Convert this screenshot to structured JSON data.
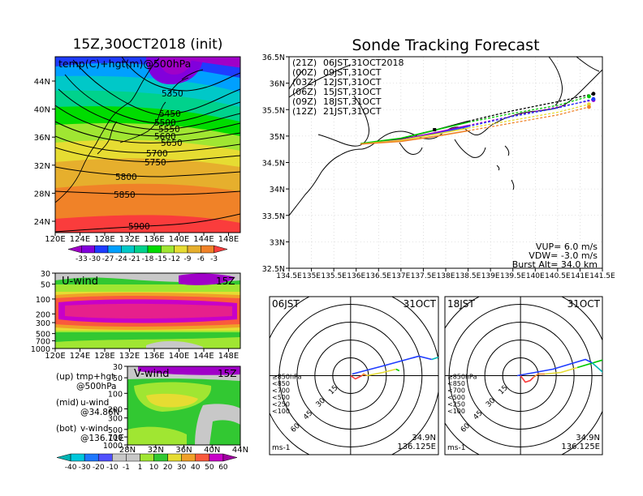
{
  "left_title": "15Z,30OCT2018 (init)",
  "right_title": "Sonde Tracking Forecast",
  "upper_map": {
    "label": "temp(C)+hgt(m)@500hPa",
    "lon_ticks": [
      "120E",
      "124E",
      "128E",
      "132E",
      "136E",
      "140E",
      "144E",
      "148E"
    ],
    "lat_ticks": [
      "44N",
      "40N",
      "36N",
      "32N",
      "28N",
      "24N"
    ],
    "contours": [
      "5350",
      "5450",
      "5500",
      "5550",
      "5600",
      "5650",
      "5700",
      "5750",
      "5800",
      "5850",
      "5900"
    ],
    "colorbar_labels": [
      "-33",
      "-30",
      "-27",
      "-24",
      "-21",
      "-18",
      "-15",
      "-12",
      "-9",
      "-6",
      "-3"
    ],
    "colorbar_colors": [
      "#a000c8",
      "#8200dc",
      "#1e3cff",
      "#00a0ff",
      "#00c8c8",
      "#00d28c",
      "#00dc00",
      "#a0e632",
      "#e6dc32",
      "#e6af2d",
      "#f08228",
      "#fa3c3c"
    ]
  },
  "u_wind": {
    "label": "U-wind",
    "time": "15Z",
    "p_ticks": [
      "30",
      "50",
      "100",
      "200",
      "300",
      "500",
      "700",
      "1000"
    ],
    "lon_ticks": [
      "120E",
      "124E",
      "128E",
      "132E",
      "136E",
      "140E",
      "144E",
      "148E"
    ]
  },
  "v_wind": {
    "label": "V-wind",
    "time": "15Z",
    "p_ticks": [
      "30",
      "50",
      "100",
      "200",
      "300",
      "500",
      "700",
      "1000"
    ],
    "lat_ticks": [
      "28N",
      "32N",
      "36N",
      "40N",
      "44N"
    ]
  },
  "legend_notes": [
    {
      "k": "(up)",
      "line1": "tmp+hgt",
      "line2": "@500hPa"
    },
    {
      "k": "(mid)",
      "line1": "u-wind",
      "line2": "@34.86N"
    },
    {
      "k": "(bot)",
      "line1": "v-wind",
      "line2": "@136.11E"
    }
  ],
  "wind_colorbar_labels": [
    "-40",
    "-30",
    "-20",
    "-10",
    "-1",
    "1",
    "10",
    "20",
    "30",
    "40",
    "50",
    "60"
  ],
  "wind_colorbar_colors": [
    "#00b4b4",
    "#00c8dc",
    "#1e78ff",
    "#5050ff",
    "#c8c8c8",
    "#c8c8c8",
    "#a0e632",
    "#32c832",
    "#e6dc32",
    "#f0a028",
    "#fa5a3c",
    "#c800c8",
    "#a000a0"
  ],
  "track_map": {
    "lat_ticks": [
      "36.5N",
      "36N",
      "35.5N",
      "35N",
      "34.5N",
      "34N",
      "33.5N",
      "33N",
      "32.5N"
    ],
    "lon_ticks": [
      "134.5E",
      "135E",
      "135.5E",
      "136E",
      "136.5E",
      "137E",
      "137.5E",
      "138E",
      "138.5E",
      "139E",
      "139.5E",
      "140E",
      "140.5E",
      "141E",
      "141.5E"
    ],
    "legend": [
      {
        "launch": "(21Z)",
        "label": "06JST,31OCT2018",
        "color": "#000000"
      },
      {
        "launch": "(00Z)",
        "label": "09JST,31OCT",
        "color": "#a000c8"
      },
      {
        "launch": "(03Z)",
        "label": "12JST,31OCT",
        "color": "#1e3cff"
      },
      {
        "launch": "(06Z)",
        "label": "15JST,31OCT",
        "color": "#00c800"
      },
      {
        "launch": "(09Z)",
        "label": "18JST,31OCT",
        "color": "#e6dc32"
      },
      {
        "launch": "(12Z)",
        "label": "21JST,31OCT",
        "color": "#f08228"
      }
    ],
    "vup": "VUP=  6.0 m/s",
    "vdw": "VDW= -3.0 m/s",
    "burst": "Burst Alt= 34.0 km"
  },
  "hodographs": [
    {
      "time": "06JST",
      "date": "31OCT",
      "lat": "34.9N",
      "lon": "136.125E",
      "unit": "ms-1",
      "rings": [
        "15",
        "30",
        "45",
        "60"
      ],
      "plev": [
        "≥850hPa",
        "<850",
        "<700",
        "<500",
        "<250",
        "<100"
      ]
    },
    {
      "time": "18JST",
      "date": "31OCT",
      "lat": "34.9N",
      "lon": "136.125E",
      "unit": "ms-1",
      "rings": [
        "15",
        "30",
        "45",
        "60"
      ],
      "plev": [
        "≥850hPa",
        "<850",
        "<700",
        "<500",
        "<250",
        "<100"
      ]
    }
  ],
  "chart_data": [
    {
      "type": "heatmap",
      "title": "15Z,30OCT2018 (init)",
      "subtitle": "temp(C)+hgt(m)@500hPa",
      "xlim": [
        120,
        150
      ],
      "ylim": [
        22,
        48
      ],
      "contour_levels": [
        5350,
        5450,
        5500,
        5550,
        5600,
        5650,
        5700,
        5750,
        5800,
        5850,
        5900
      ],
      "colorbar": [
        -33,
        -30,
        -27,
        -24,
        -21,
        -18,
        -15,
        -12,
        -9,
        -6,
        -3
      ]
    },
    {
      "type": "heatmap",
      "title": "U-wind",
      "xlim": [
        120,
        150
      ],
      "ylim": [
        1000,
        30
      ],
      "yscale": "log"
    },
    {
      "type": "heatmap",
      "title": "V-wind",
      "xlim": [
        28,
        44
      ],
      "ylim": [
        1000,
        30
      ],
      "yscale": "log"
    },
    {
      "type": "line",
      "title": "Sonde Tracking Forecast",
      "xlim": [
        134.5,
        141.5
      ],
      "ylim": [
        32.5,
        36.5
      ],
      "series": [
        {
          "name": "(21Z) 06JST,31OCT2018",
          "x": [
            136.1,
            137.0,
            137.8,
            138.5,
            139.5,
            140.5,
            141.3
          ],
          "y": [
            34.85,
            34.95,
            35.12,
            35.28,
            35.48,
            35.65,
            35.8
          ]
        },
        {
          "name": "(00Z) 09JST,31OCT",
          "x": [
            136.1,
            137.0,
            137.8,
            138.5,
            139.5,
            140.5,
            141.3
          ],
          "y": [
            34.85,
            34.93,
            35.07,
            35.2,
            35.38,
            35.55,
            35.68
          ]
        },
        {
          "name": "(03Z) 12JST,31OCT",
          "x": [
            136.1,
            137.0,
            137.8,
            138.5,
            139.5,
            140.5,
            141.3
          ],
          "y": [
            34.85,
            34.92,
            35.05,
            35.18,
            35.37,
            35.53,
            35.7
          ]
        },
        {
          "name": "(06Z) 15JST,31OCT",
          "x": [
            136.1,
            137.0,
            137.8,
            138.5,
            139.5,
            140.5,
            141.2
          ],
          "y": [
            34.86,
            34.96,
            35.12,
            35.26,
            35.43,
            35.58,
            35.75
          ]
        },
        {
          "name": "(09Z) 18JST,31OCT",
          "x": [
            136.1,
            137.0,
            137.8,
            138.5,
            139.5,
            140.5,
            141.2
          ],
          "y": [
            34.85,
            34.92,
            35.04,
            35.15,
            35.3,
            35.45,
            35.6
          ]
        },
        {
          "name": "(12Z) 21JST,31OCT",
          "x": [
            136.1,
            137.0,
            137.8,
            138.5,
            139.5,
            140.5,
            141.2
          ],
          "y": [
            34.85,
            34.9,
            35.0,
            35.1,
            35.25,
            35.4,
            35.55
          ]
        }
      ]
    }
  ]
}
